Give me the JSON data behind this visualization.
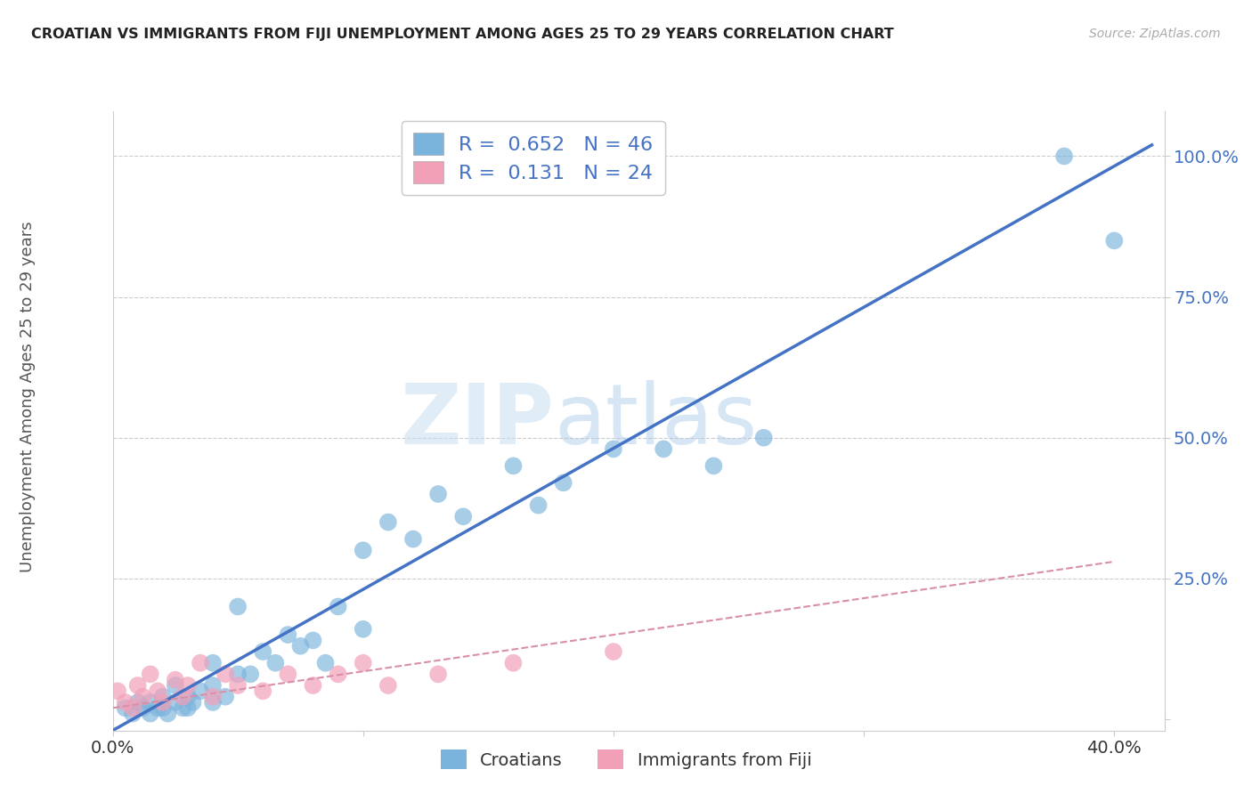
{
  "title": "CROATIAN VS IMMIGRANTS FROM FIJI UNEMPLOYMENT AMONG AGES 25 TO 29 YEARS CORRELATION CHART",
  "source": "Source: ZipAtlas.com",
  "ylabel": "Unemployment Among Ages 25 to 29 years",
  "xlim": [
    0.0,
    0.42
  ],
  "ylim": [
    -0.02,
    1.08
  ],
  "xticks": [
    0.0,
    0.1,
    0.2,
    0.3,
    0.4
  ],
  "xticklabels": [
    "0.0%",
    "",
    "",
    "",
    "40.0%"
  ],
  "yticks": [
    0.0,
    0.25,
    0.5,
    0.75,
    1.0
  ],
  "yticklabels": [
    "",
    "25.0%",
    "50.0%",
    "75.0%",
    "100.0%"
  ],
  "croatians_R": 0.652,
  "croatians_N": 46,
  "fiji_R": 0.131,
  "fiji_N": 24,
  "blue_color": "#7ab3db",
  "pink_color": "#f2a0b8",
  "blue_line_color": "#4472c4",
  "pink_line_color": "#d98fa8",
  "legend_blue_label": "Croatians",
  "legend_pink_label": "Immigrants from Fiji",
  "watermark_zip": "ZIP",
  "watermark_atlas": "atlas",
  "croatians_x": [
    0.005,
    0.008,
    0.01,
    0.012,
    0.015,
    0.015,
    0.018,
    0.02,
    0.02,
    0.022,
    0.025,
    0.025,
    0.028,
    0.03,
    0.03,
    0.032,
    0.035,
    0.04,
    0.04,
    0.04,
    0.045,
    0.05,
    0.05,
    0.055,
    0.06,
    0.065,
    0.07,
    0.075,
    0.08,
    0.085,
    0.09,
    0.1,
    0.1,
    0.11,
    0.12,
    0.13,
    0.14,
    0.16,
    0.17,
    0.18,
    0.2,
    0.22,
    0.24,
    0.26,
    0.38,
    0.4
  ],
  "croatians_y": [
    0.02,
    0.01,
    0.03,
    0.02,
    0.01,
    0.03,
    0.02,
    0.02,
    0.04,
    0.01,
    0.03,
    0.06,
    0.02,
    0.04,
    0.02,
    0.03,
    0.05,
    0.03,
    0.06,
    0.1,
    0.04,
    0.08,
    0.2,
    0.08,
    0.12,
    0.1,
    0.15,
    0.13,
    0.14,
    0.1,
    0.2,
    0.16,
    0.3,
    0.35,
    0.32,
    0.4,
    0.36,
    0.45,
    0.38,
    0.42,
    0.48,
    0.48,
    0.45,
    0.5,
    1.0,
    0.85
  ],
  "fiji_x": [
    0.002,
    0.005,
    0.008,
    0.01,
    0.012,
    0.015,
    0.018,
    0.02,
    0.025,
    0.028,
    0.03,
    0.035,
    0.04,
    0.045,
    0.05,
    0.06,
    0.07,
    0.08,
    0.09,
    0.1,
    0.11,
    0.13,
    0.16,
    0.2
  ],
  "fiji_y": [
    0.05,
    0.03,
    0.02,
    0.06,
    0.04,
    0.08,
    0.05,
    0.03,
    0.07,
    0.04,
    0.06,
    0.1,
    0.04,
    0.08,
    0.06,
    0.05,
    0.08,
    0.06,
    0.08,
    0.1,
    0.06,
    0.08,
    0.1,
    0.12
  ],
  "blue_line_x0": 0.0,
  "blue_line_y0": -0.02,
  "blue_line_x1": 0.415,
  "blue_line_y1": 1.02,
  "pink_line_x0": 0.0,
  "pink_line_y0": 0.02,
  "pink_line_x1": 0.4,
  "pink_line_y1": 0.28,
  "background_color": "#ffffff",
  "grid_color": "#cccccc"
}
